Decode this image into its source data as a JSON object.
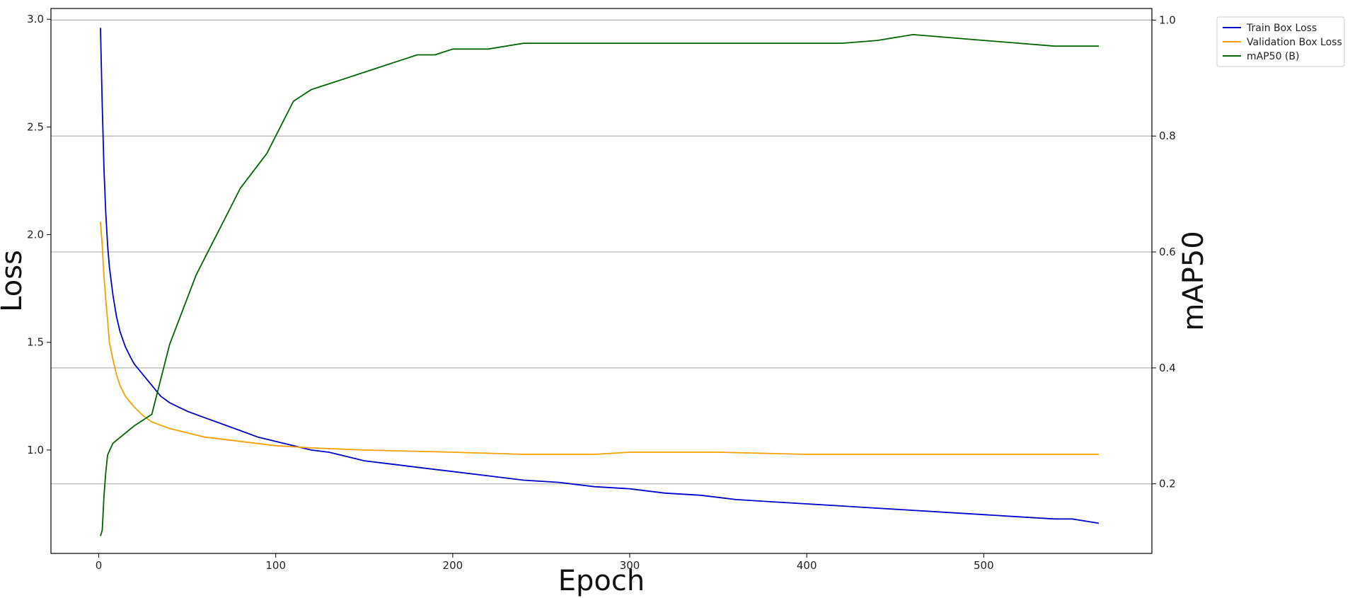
{
  "chart_data": {
    "type": "line",
    "xlabel": "Epoch",
    "ylabel_left": "Loss",
    "ylabel_right": "mAP50",
    "xlim": [
      -27,
      595
    ],
    "ylim_left": [
      0.52,
      3.05
    ],
    "ylim_right": [
      0.08,
      1.02
    ],
    "x_ticks": [
      0,
      100,
      200,
      300,
      400,
      500
    ],
    "y_left_ticks": [
      1.0,
      1.5,
      2.0,
      2.5,
      3.0
    ],
    "y_right_ticks": [
      0.2,
      0.4,
      0.6,
      0.8,
      1.0
    ],
    "grid": "horizontal lines at right-axis ticks",
    "legend_position": "outside top-right",
    "colors": {
      "train": "#0000cc",
      "val": "#f5a000",
      "map": "#006400",
      "grid": "#b0b0b0",
      "axis": "#000000"
    },
    "series": [
      {
        "name": "Train Box Loss",
        "axis": "left",
        "color": "#0000cc",
        "points": [
          [
            1,
            2.96
          ],
          [
            2,
            2.6
          ],
          [
            3,
            2.3
          ],
          [
            4,
            2.1
          ],
          [
            5,
            1.95
          ],
          [
            6,
            1.85
          ],
          [
            8,
            1.72
          ],
          [
            10,
            1.62
          ],
          [
            12,
            1.55
          ],
          [
            15,
            1.48
          ],
          [
            18,
            1.43
          ],
          [
            20,
            1.4
          ],
          [
            25,
            1.35
          ],
          [
            30,
            1.3
          ],
          [
            35,
            1.25
          ],
          [
            40,
            1.22
          ],
          [
            50,
            1.18
          ],
          [
            60,
            1.15
          ],
          [
            70,
            1.12
          ],
          [
            80,
            1.09
          ],
          [
            90,
            1.06
          ],
          [
            100,
            1.04
          ],
          [
            110,
            1.02
          ],
          [
            120,
            1.0
          ],
          [
            130,
            0.99
          ],
          [
            140,
            0.97
          ],
          [
            150,
            0.95
          ],
          [
            160,
            0.94
          ],
          [
            170,
            0.93
          ],
          [
            180,
            0.92
          ],
          [
            190,
            0.91
          ],
          [
            200,
            0.9
          ],
          [
            220,
            0.88
          ],
          [
            240,
            0.86
          ],
          [
            260,
            0.85
          ],
          [
            280,
            0.83
          ],
          [
            300,
            0.82
          ],
          [
            320,
            0.8
          ],
          [
            340,
            0.79
          ],
          [
            360,
            0.77
          ],
          [
            380,
            0.76
          ],
          [
            400,
            0.75
          ],
          [
            420,
            0.74
          ],
          [
            440,
            0.73
          ],
          [
            460,
            0.72
          ],
          [
            480,
            0.71
          ],
          [
            500,
            0.7
          ],
          [
            520,
            0.69
          ],
          [
            540,
            0.68
          ],
          [
            550,
            0.68
          ],
          [
            565,
            0.66
          ]
        ]
      },
      {
        "name": "Validation Box Loss",
        "axis": "left",
        "color": "#f5a000",
        "points": [
          [
            1,
            2.06
          ],
          [
            2,
            1.95
          ],
          [
            3,
            1.8
          ],
          [
            4,
            1.7
          ],
          [
            5,
            1.6
          ],
          [
            6,
            1.5
          ],
          [
            8,
            1.42
          ],
          [
            10,
            1.35
          ],
          [
            12,
            1.3
          ],
          [
            15,
            1.25
          ],
          [
            20,
            1.2
          ],
          [
            25,
            1.16
          ],
          [
            30,
            1.13
          ],
          [
            40,
            1.1
          ],
          [
            50,
            1.08
          ],
          [
            60,
            1.06
          ],
          [
            70,
            1.05
          ],
          [
            80,
            1.04
          ],
          [
            90,
            1.03
          ],
          [
            100,
            1.02
          ],
          [
            120,
            1.01
          ],
          [
            150,
            1.0
          ],
          [
            200,
            0.99
          ],
          [
            240,
            0.98
          ],
          [
            280,
            0.98
          ],
          [
            300,
            0.99
          ],
          [
            350,
            0.99
          ],
          [
            400,
            0.98
          ],
          [
            450,
            0.98
          ],
          [
            500,
            0.98
          ],
          [
            565,
            0.98
          ]
        ]
      },
      {
        "name": "mAP50 (B)",
        "axis": "right",
        "color": "#006400",
        "points": [
          [
            1,
            0.11
          ],
          [
            2,
            0.12
          ],
          [
            3,
            0.18
          ],
          [
            4,
            0.22
          ],
          [
            5,
            0.25
          ],
          [
            8,
            0.27
          ],
          [
            12,
            0.28
          ],
          [
            16,
            0.29
          ],
          [
            20,
            0.3
          ],
          [
            25,
            0.31
          ],
          [
            30,
            0.32
          ],
          [
            35,
            0.38
          ],
          [
            40,
            0.44
          ],
          [
            45,
            0.48
          ],
          [
            50,
            0.52
          ],
          [
            55,
            0.56
          ],
          [
            60,
            0.59
          ],
          [
            65,
            0.62
          ],
          [
            70,
            0.65
          ],
          [
            75,
            0.68
          ],
          [
            80,
            0.71
          ],
          [
            85,
            0.73
          ],
          [
            90,
            0.75
          ],
          [
            95,
            0.77
          ],
          [
            100,
            0.8
          ],
          [
            105,
            0.83
          ],
          [
            110,
            0.86
          ],
          [
            115,
            0.87
          ],
          [
            120,
            0.88
          ],
          [
            130,
            0.89
          ],
          [
            140,
            0.9
          ],
          [
            150,
            0.91
          ],
          [
            160,
            0.92
          ],
          [
            170,
            0.93
          ],
          [
            180,
            0.94
          ],
          [
            190,
            0.94
          ],
          [
            200,
            0.95
          ],
          [
            220,
            0.95
          ],
          [
            240,
            0.96
          ],
          [
            260,
            0.96
          ],
          [
            280,
            0.96
          ],
          [
            300,
            0.96
          ],
          [
            320,
            0.96
          ],
          [
            340,
            0.96
          ],
          [
            360,
            0.96
          ],
          [
            380,
            0.96
          ],
          [
            400,
            0.96
          ],
          [
            420,
            0.96
          ],
          [
            440,
            0.965
          ],
          [
            460,
            0.975
          ],
          [
            480,
            0.97
          ],
          [
            500,
            0.965
          ],
          [
            520,
            0.96
          ],
          [
            540,
            0.955
          ],
          [
            565,
            0.955
          ]
        ]
      }
    ]
  }
}
